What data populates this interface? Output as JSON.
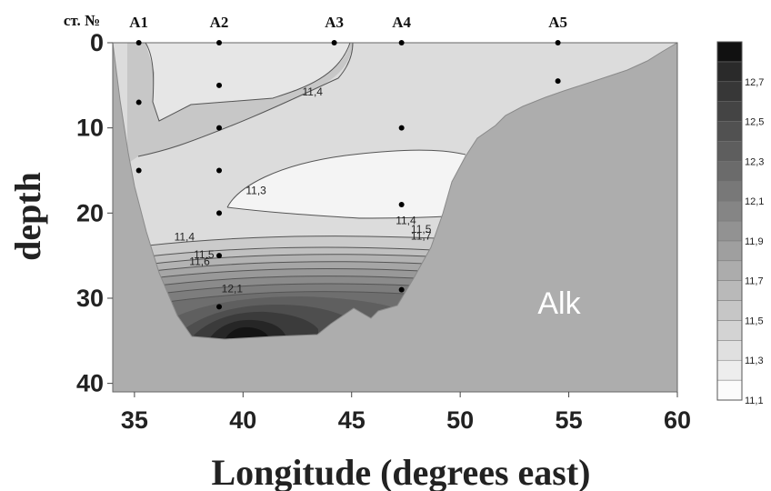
{
  "chart_data": {
    "type": "heatmap",
    "subtype": "filled-contour section",
    "variable_label": "Alk",
    "xlabel": "Longitude (degrees east)",
    "ylabel": "depth",
    "xlim": [
      34,
      60
    ],
    "ylim": [
      0,
      41
    ],
    "y_inverted": true,
    "x_ticks": [
      "35",
      "40",
      "45",
      "50",
      "55",
      "60"
    ],
    "y_ticks": [
      "0",
      "10",
      "20",
      "30",
      "40"
    ],
    "station_prefix": "ст. №",
    "stations": [
      {
        "name": "A1",
        "lon": 35.2,
        "depths": [
          0,
          7,
          15
        ]
      },
      {
        "name": "A2",
        "lon": 38.9,
        "depths": [
          0,
          5,
          10,
          15,
          20,
          25,
          31
        ]
      },
      {
        "name": "A3",
        "lon": 44.2,
        "depths": [
          0
        ]
      },
      {
        "name": "A4",
        "lon": 47.3,
        "depths": [
          0,
          10,
          19,
          29
        ]
      },
      {
        "name": "A5",
        "lon": 54.5,
        "depths": [
          0,
          4.5
        ]
      }
    ],
    "colorbar": {
      "levels": [
        11.1,
        11.2,
        11.3,
        11.4,
        11.5,
        11.6,
        11.7,
        11.8,
        11.9,
        12.0,
        12.1,
        12.2,
        12.3,
        12.4,
        12.5,
        12.6,
        12.7,
        12.8
      ],
      "labels": [
        "11,1",
        "11,3",
        "11,5",
        "11,7",
        "11,9",
        "12,1",
        "12,3",
        "12,5",
        "12,7"
      ],
      "colors": [
        "#fbfbfb",
        "#ededed",
        "#e0e0e0",
        "#d3d3d3",
        "#c6c6c6",
        "#b9b9b9",
        "#acacac",
        "#9f9f9f",
        "#929292",
        "#858585",
        "#787878",
        "#6b6b6b",
        "#5e5e5e",
        "#515151",
        "#444444",
        "#373737",
        "#2a2a2a",
        "#111111"
      ]
    },
    "contour_labels": [
      {
        "text": "11,4",
        "lon": 43.2,
        "depth": 6.2
      },
      {
        "text": "11,3",
        "lon": 40.6,
        "depth": 17.8
      },
      {
        "text": "11,4",
        "lon": 37.3,
        "depth": 23.2
      },
      {
        "text": "11,5",
        "lon": 38.2,
        "depth": 25.3
      },
      {
        "text": "11,6",
        "lon": 38.0,
        "depth": 26.1
      },
      {
        "text": "12,1",
        "lon": 39.5,
        "depth": 29.3
      },
      {
        "text": "11,4",
        "lon": 47.5,
        "depth": 21.3
      },
      {
        "text": "11,5",
        "lon": 48.2,
        "depth": 22.3
      },
      {
        "text": "11,7",
        "lon": 48.2,
        "depth": 23.1
      }
    ],
    "colors": {
      "land": "#adadad",
      "water_surface": "#dcdcdc",
      "contour_line": "#555555"
    }
  }
}
